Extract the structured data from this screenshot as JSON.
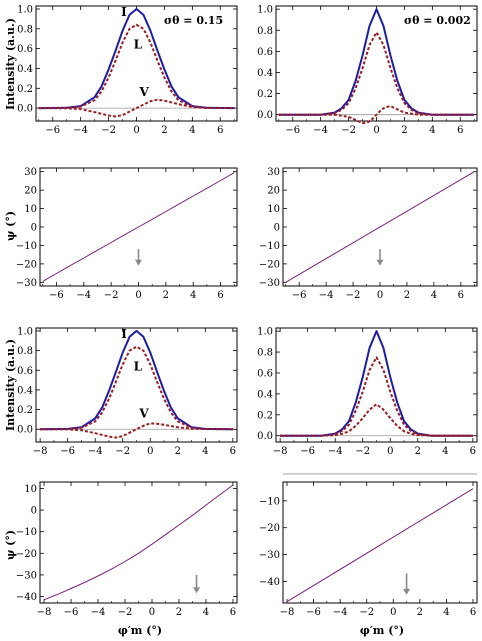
{
  "colors": {
    "I": "#1a1ab8",
    "L": "#a01c1c",
    "V": "#a01c1c",
    "psi": "#7a1f7a",
    "axis": "#000000",
    "zero": "#999999",
    "arrow": "#8a8a8a"
  },
  "chart_data": [
    {
      "id": "p1",
      "type": "line",
      "x_ticks": [
        -6,
        -4,
        -2,
        0,
        2,
        4,
        6
      ],
      "xlim": [
        -7.2,
        7.2
      ],
      "y_ticks": [
        0.0,
        0.2,
        0.4,
        0.6,
        0.8,
        1.0
      ],
      "y_tick_labels": [
        "0.0",
        "0.2",
        "0.4",
        "0.6",
        "0.8",
        "1.0"
      ],
      "ylim": [
        -0.13,
        1.03
      ],
      "ylabel": "Intensity (a.u.)",
      "note": "σθ = 0.15",
      "series": [
        {
          "name": "I",
          "style": "solid",
          "x": [
            -7,
            -5,
            -4,
            -3,
            -2.5,
            -2,
            -1.5,
            -1,
            -0.5,
            0,
            0.5,
            1,
            1.5,
            2,
            2.5,
            3,
            4,
            5,
            7
          ],
          "y": [
            0,
            0.003,
            0.02,
            0.11,
            0.22,
            0.39,
            0.58,
            0.78,
            0.94,
            1.0,
            0.94,
            0.78,
            0.58,
            0.39,
            0.22,
            0.11,
            0.02,
            0.003,
            0
          ]
        },
        {
          "name": "L",
          "style": "dashed",
          "x": [
            -7,
            -5,
            -4,
            -3,
            -2.5,
            -2,
            -1.5,
            -1,
            -0.5,
            0,
            0.5,
            1,
            1.5,
            2,
            2.5,
            3,
            4,
            5,
            7
          ],
          "y": [
            0,
            0.002,
            0.015,
            0.08,
            0.17,
            0.31,
            0.48,
            0.66,
            0.8,
            0.84,
            0.8,
            0.66,
            0.48,
            0.31,
            0.17,
            0.08,
            0.015,
            0.002,
            0
          ]
        },
        {
          "name": "V",
          "style": "dashed",
          "x": [
            -7,
            -5,
            -4,
            -3,
            -2,
            -1.5,
            -1,
            -0.5,
            0,
            0.5,
            1,
            1.5,
            2,
            3,
            4,
            5,
            7
          ],
          "y": [
            0,
            -0.002,
            -0.01,
            -0.04,
            -0.075,
            -0.085,
            -0.07,
            -0.035,
            0,
            0.035,
            0.07,
            0.085,
            0.075,
            0.04,
            0.01,
            0.002,
            0
          ]
        }
      ],
      "annotations": [
        {
          "text": "I",
          "x": -0.9,
          "y": 0.93
        },
        {
          "text": "L",
          "x": 0.1,
          "y": 0.6
        },
        {
          "text": "V",
          "x": 0.55,
          "y": 0.12
        }
      ]
    },
    {
      "id": "p2",
      "type": "line",
      "x_ticks": [
        -6,
        -4,
        -2,
        0,
        2,
        4,
        6
      ],
      "xlim": [
        -7.2,
        7.2
      ],
      "y_ticks": [
        0.0,
        0.2,
        0.4,
        0.6,
        0.8,
        1.0
      ],
      "y_tick_labels": [
        "0.0",
        "0.2",
        "0.4",
        "0.6",
        "0.8",
        "1.0"
      ],
      "ylim": [
        -0.06,
        1.03
      ],
      "note": "σθ = 0.002",
      "series": [
        {
          "name": "I",
          "style": "solid",
          "x": [
            -7,
            -4,
            -3,
            -2.5,
            -2,
            -1.5,
            -1,
            -0.5,
            0,
            0.5,
            1,
            1.5,
            2,
            2.5,
            3,
            4,
            7
          ],
          "y": [
            0,
            0.0,
            0.02,
            0.06,
            0.14,
            0.32,
            0.56,
            0.84,
            1.0,
            0.84,
            0.56,
            0.32,
            0.14,
            0.06,
            0.02,
            0,
            0
          ]
        },
        {
          "name": "L",
          "style": "dashed",
          "x": [
            -7,
            -4,
            -3,
            -2.5,
            -2,
            -1.5,
            -1,
            -0.5,
            0,
            0.5,
            1,
            1.5,
            2,
            2.5,
            3,
            4,
            7
          ],
          "y": [
            0,
            0.0,
            0.015,
            0.045,
            0.11,
            0.25,
            0.44,
            0.66,
            0.78,
            0.66,
            0.44,
            0.25,
            0.11,
            0.045,
            0.015,
            0,
            0
          ]
        },
        {
          "name": "V",
          "style": "dashed",
          "x": [
            -7,
            -3,
            -2,
            -1.5,
            -1,
            -0.6,
            -0.3,
            0,
            0.3,
            0.6,
            1,
            1.5,
            2,
            3,
            7
          ],
          "y": [
            0,
            0,
            -0.02,
            -0.05,
            -0.08,
            -0.07,
            -0.04,
            0,
            0.04,
            0.07,
            0.08,
            0.05,
            0.02,
            0,
            0
          ]
        }
      ]
    },
    {
      "id": "p3",
      "type": "line",
      "x_ticks": [
        -6,
        -4,
        -2,
        0,
        2,
        4,
        6
      ],
      "xlim": [
        -7.2,
        7.2
      ],
      "y_ticks": [
        -30,
        -20,
        -10,
        0,
        10,
        20,
        30
      ],
      "y_tick_labels": [
        "−30",
        "−20",
        "−10",
        "0",
        "10",
        "20",
        "30"
      ],
      "ylim": [
        -32,
        32
      ],
      "ylabel": "ψ (°)",
      "series": [
        {
          "name": "psi",
          "style": "solid",
          "x": [
            -7,
            -6,
            -5,
            -4,
            -3,
            -2,
            -1,
            0,
            1,
            2,
            3,
            4,
            5,
            6,
            7
          ],
          "y": [
            -29.5,
            -25.2,
            -21.0,
            -16.8,
            -12.6,
            -8.4,
            -4.2,
            0,
            4.2,
            8.4,
            12.6,
            16.8,
            21.0,
            25.2,
            29.5
          ]
        }
      ],
      "arrow": {
        "x": 0,
        "y_top": -12,
        "y_bottom": -21
      }
    },
    {
      "id": "p4",
      "type": "line",
      "x_ticks": [
        -6,
        -4,
        -2,
        0,
        2,
        4,
        6
      ],
      "xlim": [
        -7.2,
        7.2
      ],
      "y_ticks": [
        -30,
        -20,
        -10,
        0,
        10,
        20,
        30
      ],
      "y_tick_labels": [
        "−30",
        "−20",
        "−10",
        "0",
        "10",
        "20",
        "30"
      ],
      "ylim": [
        -32,
        32
      ],
      "series": [
        {
          "name": "psi",
          "style": "solid",
          "x": [
            -7,
            7
          ],
          "y": [
            -30.0,
            30.0
          ]
        }
      ],
      "arrow": {
        "x": 0,
        "y_top": -12,
        "y_bottom": -21
      }
    },
    {
      "id": "p5",
      "type": "line",
      "x_ticks": [
        -8,
        -6,
        -4,
        -2,
        0,
        2,
        4,
        6
      ],
      "xlim": [
        -8.3,
        6.3
      ],
      "y_ticks": [
        0.0,
        0.2,
        0.4,
        0.6,
        0.8,
        1.0
      ],
      "y_tick_labels": [
        "0.0",
        "0.2",
        "0.4",
        "0.6",
        "0.8",
        "1.0"
      ],
      "ylim": [
        -0.13,
        1.03
      ],
      "ylabel": "Intensity (a.u.)",
      "series": [
        {
          "name": "I",
          "style": "solid",
          "x": [
            -8,
            -6,
            -5,
            -4,
            -3.5,
            -3,
            -2.5,
            -2,
            -1.5,
            -1,
            -0.5,
            0,
            0.5,
            1,
            1.5,
            2,
            3,
            4,
            6
          ],
          "y": [
            0,
            0.003,
            0.02,
            0.11,
            0.22,
            0.39,
            0.58,
            0.78,
            0.94,
            1.0,
            0.94,
            0.78,
            0.58,
            0.39,
            0.22,
            0.11,
            0.02,
            0.003,
            0
          ]
        },
        {
          "name": "L",
          "style": "dashed",
          "x": [
            -8,
            -6,
            -5,
            -4,
            -3.5,
            -3,
            -2.5,
            -2,
            -1.5,
            -1,
            -0.5,
            0,
            0.5,
            1,
            1.5,
            2,
            3,
            4,
            6
          ],
          "y": [
            0,
            0.002,
            0.015,
            0.08,
            0.17,
            0.31,
            0.48,
            0.66,
            0.8,
            0.84,
            0.8,
            0.66,
            0.48,
            0.31,
            0.17,
            0.08,
            0.015,
            0.002,
            0
          ]
        },
        {
          "name": "V",
          "style": "dashed",
          "x": [
            -8,
            -6,
            -5,
            -4,
            -3,
            -2.5,
            -2,
            -1.5,
            -1,
            -0.5,
            0,
            0.5,
            1,
            2,
            3,
            4,
            6
          ],
          "y": [
            0,
            -0.002,
            -0.01,
            -0.04,
            -0.075,
            -0.085,
            -0.07,
            -0.035,
            0,
            0.035,
            0.06,
            0.055,
            0.045,
            0.02,
            0.005,
            0.001,
            0
          ]
        }
      ],
      "annotations": [
        {
          "text": "I",
          "x": -1.9,
          "y": 0.93
        },
        {
          "text": "L",
          "x": -0.9,
          "y": 0.6
        },
        {
          "text": "V",
          "x": -0.45,
          "y": 0.12
        }
      ]
    },
    {
      "id": "p6",
      "type": "line",
      "x_ticks": [
        -8,
        -6,
        -4,
        -2,
        0,
        2,
        4,
        6
      ],
      "xlim": [
        -8.3,
        6.3
      ],
      "y_ticks": [
        0.0,
        0.2,
        0.4,
        0.6,
        0.8,
        1.0
      ],
      "y_tick_labels": [
        "0.0",
        "0.2",
        "0.4",
        "0.6",
        "0.8",
        "1.0"
      ],
      "ylim": [
        -0.06,
        1.03
      ],
      "series": [
        {
          "name": "I",
          "style": "solid",
          "x": [
            -8,
            -5,
            -4,
            -3.5,
            -3,
            -2.5,
            -2,
            -1.5,
            -1,
            -0.5,
            0,
            0.5,
            1,
            1.5,
            2,
            3,
            6
          ],
          "y": [
            0,
            0,
            0.02,
            0.06,
            0.14,
            0.32,
            0.56,
            0.84,
            1.0,
            0.84,
            0.56,
            0.32,
            0.14,
            0.06,
            0.02,
            0,
            0
          ]
        },
        {
          "name": "L",
          "style": "dashed",
          "x": [
            -8,
            -5,
            -4,
            -3.5,
            -3,
            -2.5,
            -2,
            -1.5,
            -1,
            -0.5,
            0,
            0.5,
            1,
            1.5,
            2,
            3,
            6
          ],
          "y": [
            0,
            0,
            0.015,
            0.045,
            0.105,
            0.24,
            0.42,
            0.63,
            0.75,
            0.63,
            0.42,
            0.24,
            0.105,
            0.045,
            0.015,
            0,
            0
          ]
        },
        {
          "name": "V",
          "style": "dashed",
          "x": [
            -8,
            -5,
            -4,
            -3.5,
            -3,
            -2.5,
            -2,
            -1.5,
            -1,
            -0.5,
            0,
            0.5,
            1,
            1.5,
            2,
            3,
            6
          ],
          "y": [
            0,
            0,
            0.006,
            0.018,
            0.042,
            0.095,
            0.168,
            0.25,
            0.3,
            0.25,
            0.168,
            0.095,
            0.042,
            0.018,
            0.006,
            0,
            0
          ]
        }
      ]
    },
    {
      "id": "p7",
      "type": "line",
      "x_ticks": [
        -8,
        -6,
        -4,
        -2,
        0,
        2,
        4,
        6
      ],
      "xlim": [
        -8.3,
        6.3
      ],
      "y_ticks": [
        -40,
        -30,
        -20,
        -10,
        0,
        10
      ],
      "y_tick_labels": [
        "−40",
        "−30",
        "−20",
        "−10",
        "0",
        "10"
      ],
      "ylim": [
        -43,
        13
      ],
      "ylabel": "ψ (°)",
      "xlabel": "φ′m (°)",
      "series": [
        {
          "name": "psi",
          "style": "solid",
          "x": [
            -8,
            -7,
            -6,
            -5,
            -4,
            -3,
            -2,
            -1,
            0,
            1,
            2,
            3,
            4,
            5,
            6
          ],
          "y": [
            -41.5,
            -39.0,
            -36.3,
            -33.5,
            -30.5,
            -27.3,
            -23.8,
            -20.0,
            -15.8,
            -11.4,
            -6.9,
            -2.4,
            2.3,
            7.0,
            11.6
          ]
        }
      ],
      "arrow": {
        "x": 3.3,
        "y_top": -30,
        "y_bottom": -38.5
      }
    },
    {
      "id": "p8",
      "type": "line",
      "x_ticks": [
        -8,
        -6,
        -4,
        -2,
        0,
        2,
        4,
        6
      ],
      "xlim": [
        -8.3,
        6.3
      ],
      "y_ticks": [
        -40,
        -30,
        -20,
        -10
      ],
      "y_tick_labels": [
        "−40",
        "−30",
        "−20",
        "−10"
      ],
      "ylim": [
        -48,
        -3
      ],
      "xlabel": "φ′m (°)",
      "series": [
        {
          "name": "psi",
          "style": "solid",
          "x": [
            -8,
            6
          ],
          "y": [
            -47.5,
            -5.5
          ]
        }
      ],
      "arrow": {
        "x": 1,
        "y_top": -37,
        "y_bottom": -45
      }
    }
  ]
}
